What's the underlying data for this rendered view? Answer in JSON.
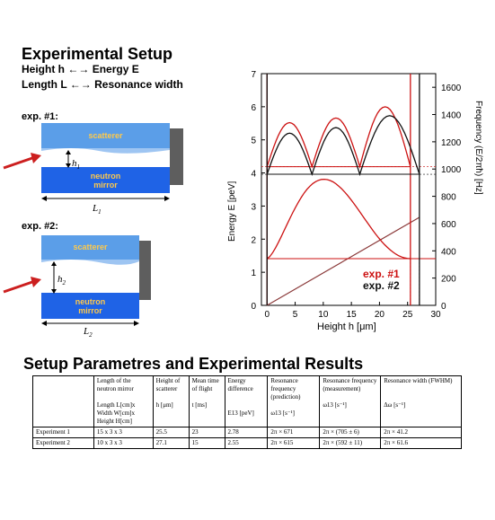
{
  "heading": "Experimental Setup",
  "relations": [
    {
      "left": "Height h",
      "right": "Energy E"
    },
    {
      "left": "Length L",
      "right": "Resonance width"
    }
  ],
  "exp1": {
    "label": "exp. #1:",
    "scatterer": "scatterer",
    "mirror_line1": "neutron",
    "mirror_line2": "mirror",
    "h_base": "h",
    "h_sub": "1",
    "l_base": "L",
    "l_sub": "1"
  },
  "exp2": {
    "label": "exp. #2:",
    "scatterer": "scatterer",
    "mirror_line1": "neutron",
    "mirror_line2": "mirror",
    "h_base": "h",
    "h_sub": "2",
    "l_base": "L",
    "l_sub": "2"
  },
  "plot": {
    "ylabel_left": "Energy E [peV]",
    "ylabel_right": "Frequency (E/2πħ) [Hz]",
    "xlabel": "Height h [μm]",
    "xticks": [
      "0",
      "5",
      "10",
      "15",
      "20",
      "25",
      "30"
    ],
    "yticks_left": [
      "0",
      "1",
      "2",
      "3",
      "4",
      "5",
      "6",
      "7"
    ],
    "yticks_right": [
      "0",
      "200",
      "400",
      "600",
      "800",
      "1000",
      "1200",
      "1400",
      "1600"
    ],
    "legend": [
      {
        "name": "exp. #1",
        "color": "#cc1111"
      },
      {
        "name": "exp. #2",
        "color": "#111111"
      }
    ]
  },
  "chart_data": {
    "type": "line",
    "xlabel": "Height h [μm]",
    "ylabel": "Energy E [peV]",
    "xlim": [
      -1,
      30
    ],
    "ylim": [
      0,
      7
    ],
    "y2lim": [
      0,
      1700
    ],
    "grid": false,
    "legend_position": "bottom-right",
    "series": [
      {
        "name": "exp. #1",
        "color": "#cc1111",
        "walls": [
          0,
          25.5
        ],
        "ground_level": 1.41,
        "excited_level": 4.19,
        "ground_peak": 3.81,
        "excited_peaks": [
          [
            4,
            5.52
          ],
          [
            12,
            5.66
          ],
          [
            21,
            6.0
          ]
        ]
      },
      {
        "name": "exp. #2",
        "color": "#111111",
        "walls": [
          0,
          27.1
        ],
        "ground_level": 1.41,
        "excited_level": 3.96,
        "excited_peaks": [
          [
            4,
            5.2
          ],
          [
            12,
            5.37
          ],
          [
            21,
            5.73
          ]
        ]
      }
    ],
    "gravity_potential": {
      "x": [
        0,
        27.1
      ],
      "y": [
        0,
        2.66
      ]
    }
  },
  "section2_title": "Setup Parametres and Experimental Results",
  "table": {
    "headers": [
      [
        "",
        ""
      ],
      [
        "Length of the neutron mirror",
        "Length L[cm]x Width W[cm]x Height H[cm]"
      ],
      [
        "Height of scatterer",
        "h [μm]"
      ],
      [
        "Mean time of flight",
        "t [ms]"
      ],
      [
        "Energy difference",
        "E13 [peV]"
      ],
      [
        "Resonance frequency (prediction)",
        "ω13 [s⁻¹]"
      ],
      [
        "Resonance frequency (measurement)",
        "ω13 [s⁻¹]"
      ],
      [
        "Resonance width (FWHM)",
        "Δω [s⁻¹]"
      ]
    ],
    "rows": [
      [
        "Experiment 1",
        "15 x 3 x 3",
        "25.5",
        "23",
        "2.78",
        "2π × 671",
        "2π × (705 ± 6)",
        "2π × 41.2"
      ],
      [
        "Experiment 2",
        "10 x 3 x 3",
        "27.1",
        "15",
        "2.55",
        "2π × 615",
        "2π × (592 ± 11)",
        "2π × 61.6"
      ]
    ]
  }
}
